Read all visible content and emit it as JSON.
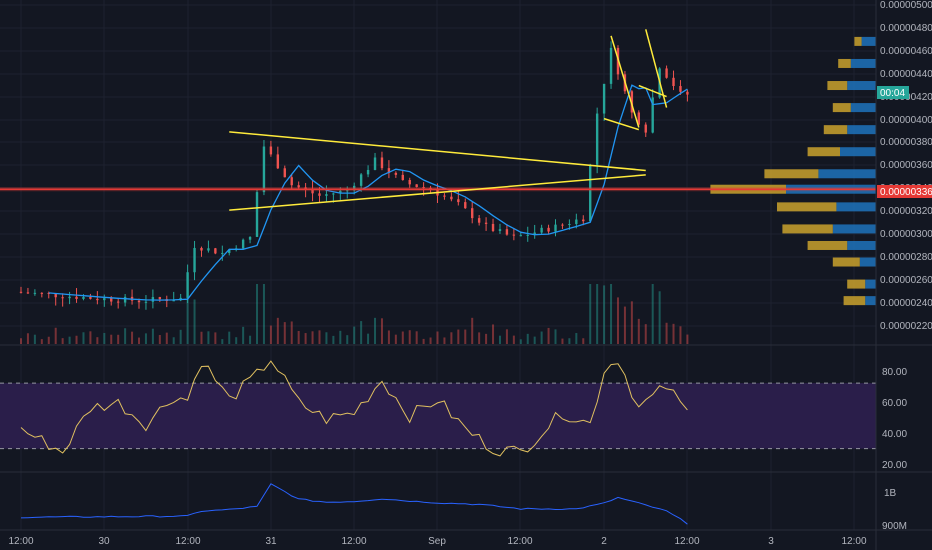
{
  "colors": {
    "background": "#131722",
    "grid": "#1e2230",
    "axis_text": "#b2b5be",
    "candle_up": "#26a69a",
    "candle_down": "#ef5350",
    "ma_line": "#2196f3",
    "trendline": "#ffeb3b",
    "support_line": "#e53935",
    "rsi_line": "#e0c060",
    "rsi_band": "#2a1e4a",
    "rsi_dash": "#9598a1",
    "vol_line": "#2962ff",
    "vp_up": "#1e6eb4",
    "vp_down": "#c09a2c",
    "last_price_label": "#26a69a"
  },
  "price_axis": {
    "ticks": [
      "0.00000500",
      "0.00000480",
      "0.00000460",
      "0.00000440",
      "0.00000420",
      "0.00000400",
      "0.00000380",
      "0.00000360",
      "0.00000340",
      "0.00000320",
      "0.00000300",
      "0.00000280",
      "0.00000260",
      "0.00000240",
      "0.00000220"
    ],
    "current_price_label": "00:04",
    "support_label": "0.00000336",
    "support_price": 3.36e-06
  },
  "rsi_axis": {
    "ticks": [
      "80.00",
      "60.00",
      "40.00",
      "20.00"
    ],
    "upper_band": 70,
    "lower_band": 30
  },
  "volume_axis": {
    "ticks": [
      "1B",
      "900M"
    ]
  },
  "time_axis": {
    "labels": [
      "12:00",
      "30",
      "12:00",
      "31",
      "12:00",
      "Sep",
      "12:00",
      "2",
      "12:00",
      "3",
      "12:00"
    ]
  },
  "chart_data": {
    "type": "line",
    "x_range": [
      "Aug 29 12:00",
      "Sep 3 12:00"
    ],
    "price_ylim": [
      2.12e-06,
      5.03e-06
    ],
    "price_path": [
      [
        "Aug 29 12:00",
        2.43e-06
      ],
      [
        "Aug 30 00:00",
        2.37e-06
      ],
      [
        "Aug 30 06:00",
        2.35e-06
      ],
      [
        "Aug 30 12:00",
        2.37e-06
      ],
      [
        "Aug 30 14:00",
        2.85e-06
      ],
      [
        "Aug 30 18:00",
        2.78e-06
      ],
      [
        "Aug 30 22:00",
        2.92e-06
      ],
      [
        "Aug 31 00:00",
        3.75e-06
      ],
      [
        "Aug 31 04:00",
        3.4e-06
      ],
      [
        "Aug 31 08:00",
        3.3e-06
      ],
      [
        "Aug 31 12:00",
        3.35e-06
      ],
      [
        "Aug 31 16:00",
        3.62e-06
      ],
      [
        "Aug 31 20:00",
        3.42e-06
      ],
      [
        "Sep 1 00:00",
        3.36e-06
      ],
      [
        "Sep 1 04:00",
        3.22e-06
      ],
      [
        "Sep 1 08:00",
        3.02e-06
      ],
      [
        "Sep 1 12:00",
        2.92e-06
      ],
      [
        "Sep 1 18:00",
        3.02e-06
      ],
      [
        "Sep 1 22:00",
        3.1e-06
      ],
      [
        "Sep 2 00:00",
        4.05e-06
      ],
      [
        "Sep 2 02:00",
        4.62e-06
      ],
      [
        "Sep 2 05:00",
        4.05e-06
      ],
      [
        "Sep 2 07:00",
        3.9e-06
      ],
      [
        "Sep 2 09:00",
        4.48e-06
      ],
      [
        "Sep 2 12:00",
        4.22e-06
      ]
    ],
    "support_level": 3.36e-06,
    "volume_profile": [
      {
        "price": 4.7e-06,
        "up": 0.4,
        "down": 0.8
      },
      {
        "price": 4.5e-06,
        "up": 0.7,
        "down": 1.4
      },
      {
        "price": 4.3e-06,
        "up": 1.1,
        "down": 1.6
      },
      {
        "price": 4.1e-06,
        "up": 1.0,
        "down": 1.4
      },
      {
        "price": 3.9e-06,
        "up": 1.3,
        "down": 1.6
      },
      {
        "price": 3.7e-06,
        "up": 1.8,
        "down": 2.0
      },
      {
        "price": 3.5e-06,
        "up": 3.0,
        "down": 3.2
      },
      {
        "price": 3.36e-06,
        "up": 4.2,
        "down": 5.0
      },
      {
        "price": 3.2e-06,
        "up": 3.3,
        "down": 2.2
      },
      {
        "price": 3e-06,
        "up": 2.8,
        "down": 2.4
      },
      {
        "price": 2.85e-06,
        "up": 2.2,
        "down": 1.6
      },
      {
        "price": 2.7e-06,
        "up": 1.5,
        "down": 0.9
      },
      {
        "price": 2.5e-06,
        "up": 1.0,
        "down": 0.6
      },
      {
        "price": 2.35e-06,
        "up": 1.2,
        "down": 0.6
      }
    ],
    "rsi_ylim": [
      17,
      92
    ],
    "rsi_path": [
      [
        "Aug 29 12:00",
        42
      ],
      [
        "Aug 29 18:00",
        28
      ],
      [
        "Aug 29 22:00",
        55
      ],
      [
        "Aug 30 02:00",
        58
      ],
      [
        "Aug 30 06:00",
        45
      ],
      [
        "Aug 30 10:00",
        62
      ],
      [
        "Aug 30 12:00",
        60
      ],
      [
        "Aug 30 14:00",
        84
      ],
      [
        "Aug 30 18:00",
        60
      ],
      [
        "Aug 30 22:00",
        75
      ],
      [
        "Aug 31 00:00",
        85
      ],
      [
        "Aug 31 04:00",
        58
      ],
      [
        "Aug 31 08:00",
        48
      ],
      [
        "Aug 31 12:00",
        52
      ],
      [
        "Aug 31 16:00",
        72
      ],
      [
        "Aug 31 20:00",
        50
      ],
      [
        "Sep 1 00:00",
        60
      ],
      [
        "Sep 1 04:00",
        42
      ],
      [
        "Sep 1 08:00",
        30
      ],
      [
        "Sep 1 12:00",
        28
      ],
      [
        "Sep 1 18:00",
        52
      ],
      [
        "Sep 1 22:00",
        45
      ],
      [
        "Sep 2 00:00",
        78
      ],
      [
        "Sep 2 02:00",
        85
      ],
      [
        "Sep 2 05:00",
        55
      ],
      [
        "Sep 2 09:00",
        68
      ],
      [
        "Sep 2 12:00",
        52
      ]
    ],
    "volume_ylim": [
      880,
      1120
    ],
    "volume_path": [
      [
        "Aug 29 12:00",
        928
      ],
      [
        "Aug 30 00:00",
        930
      ],
      [
        "Aug 30 12:00",
        933
      ],
      [
        "Aug 30 14:00",
        955
      ],
      [
        "Aug 30 18:00",
        962
      ],
      [
        "Aug 30 22:00",
        975
      ],
      [
        "Aug 31 00:00",
        1075
      ],
      [
        "Aug 31 04:00",
        1008
      ],
      [
        "Aug 31 08:00",
        995
      ],
      [
        "Aug 31 12:00",
        998
      ],
      [
        "Aug 31 16:00",
        1010
      ],
      [
        "Aug 31 20:00",
        1000
      ],
      [
        "Sep 1 00:00",
        992
      ],
      [
        "Sep 1 06:00",
        985
      ],
      [
        "Sep 1 12:00",
        965
      ],
      [
        "Sep 1 20:00",
        965
      ],
      [
        "Sep 2 00:00",
        990
      ],
      [
        "Sep 2 02:00",
        1015
      ],
      [
        "Sep 2 05:00",
        990
      ],
      [
        "Sep 2 09:00",
        955
      ],
      [
        "Sep 2 12:00",
        900
      ]
    ]
  }
}
